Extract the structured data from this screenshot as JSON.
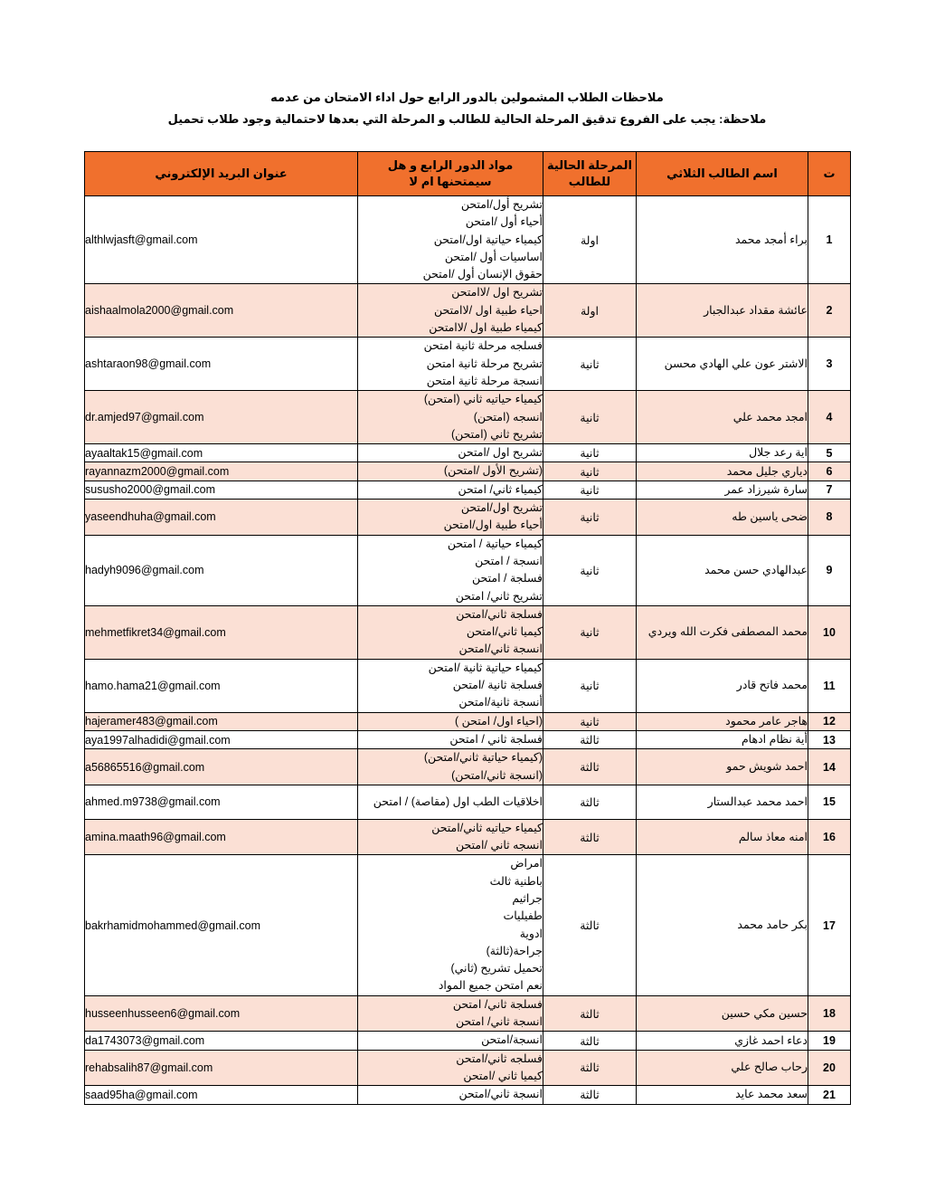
{
  "page": {
    "title_line1": "ملاحظات الطلاب المشمولين بالدور الرابع حول اداء الامتحان من عدمه",
    "title_line2": "ملاحظة:  يجب على الفروع تدقيق المرحلة الحالية للطالب و المرحلة التي بعدها لاحتمالية وجود طلاب تحميل"
  },
  "colors": {
    "header_bg": "#f0702d",
    "alt_row_bg": "#fbe0d5",
    "border": "#000000"
  },
  "table": {
    "headers": {
      "index": "ت",
      "name": "اسم الطالب الثلاثي",
      "stage": "المرحلة الحالية للطالب",
      "subjects": "مواد الدور الرابع و هل سيمتحنها ام لا",
      "email": "عنوان البريد الإلكتروني"
    },
    "rows": [
      {
        "index": "1",
        "name": "براء أمجد محمد",
        "stage": "اولة",
        "subjects": [
          "تشريح أول/امتحن",
          "أحياء أول /امتحن",
          "كيمياء حياتية اول/امتحن",
          "اساسيات  أول /امتحن",
          "حقوق الإنسان أول /امتحن"
        ],
        "email": "althlwjasft@gmail.com"
      },
      {
        "index": "2",
        "name": "عائشة مقداد عبدالجبار",
        "stage": "اولة",
        "subjects": [
          "تشريح اول /لاامتحن",
          "احياء طبية اول /لاامتحن",
          "كيمياء طبية اول /لاامتحن"
        ],
        "email": "aishaalmola2000@gmail.com"
      },
      {
        "index": "3",
        "name": "الاشتر عون علي الهادي محسن",
        "stage": "ثانية",
        "subjects": [
          "فسلجه مرحلة ثانية امتحن",
          "تشريح مرحلة ثانية امتحن",
          "انسجة مرحلة ثانية امتحن"
        ],
        "email": "ashtaraon98@gmail.com"
      },
      {
        "index": "4",
        "name": "امجد محمد علي",
        "stage": "ثانية",
        "subjects": [
          "كيمياء حياتيه ثاني (امتحن)",
          "انسجه (امتحن)",
          "تشريح ثاني (امتحن)"
        ],
        "email": "dr.amjed97@gmail.com"
      },
      {
        "index": "5",
        "name": "اية رعد جلال",
        "stage": "ثانية",
        "subjects": [
          "تشريح اول /امتحن"
        ],
        "email": "ayaaltak15@gmail.com"
      },
      {
        "index": "6",
        "name": "دياري جليل محمد",
        "stage": "ثانية",
        "subjects": [
          "(تشريح الأول /امتحن)"
        ],
        "email": "rayannazm2000@gmail.com"
      },
      {
        "index": "7",
        "name": "سارة شيرزاد عمر",
        "stage": "ثانية",
        "subjects": [
          "كيمياء ثاني/ امتحن"
        ],
        "email": "sususho2000@gmail.com"
      },
      {
        "index": "8",
        "name": "ضحى ياسين طه",
        "stage": "ثانية",
        "subjects": [
          "تشريح اول/امتحن",
          "أحياء طبية اول/امتحن"
        ],
        "email": "yaseendhuha@gmail.com"
      },
      {
        "index": "9",
        "name": "عبدالهادي حسن محمد",
        "stage": "ثانية",
        "subjects": [
          "كيمياء حياتية / امتحن",
          "انسجة / امتحن",
          "فسلجة / امتحن",
          "تشريح ثاني/ امتحن"
        ],
        "email": "hadyh9096@gmail.com"
      },
      {
        "index": "10",
        "name": "محمد المصطفى فكرت الله ويردي",
        "stage": "ثانية",
        "subjects": [
          "فسلجة ثاني/امتحن",
          "كيميا ثاني/امتحن",
          "انسجة ثاني/امتحن"
        ],
        "email": "mehmetfikret34@gmail.com"
      },
      {
        "index": "11",
        "name": "محمد فاتح قادر",
        "stage": "ثانية",
        "subjects": [
          "كيمياء حياتية ثانية /امتحن",
          "فسلجة ثانية /امتحن",
          "أنسجة ثانية/امتحن"
        ],
        "email": "hamo.hama21@gmail.com"
      },
      {
        "index": "12",
        "name": "هاجر عامر محمود",
        "stage": "ثانية",
        "subjects": [
          "(احياء اول/ امتحن )"
        ],
        "email": "hajeramer483@gmail.com"
      },
      {
        "index": "13",
        "name": "أية نظام ادهام",
        "stage": "ثالثة",
        "subjects": [
          "فسلجة ثاني / امتحن"
        ],
        "email": "aya1997alhadidi@gmail.com"
      },
      {
        "index": "14",
        "name": "احمد شويش حمو",
        "stage": "ثالثة",
        "subjects": [
          "(كيمياء حياتية ثاني/امتحن)",
          "(انسجة ثاني/امتحن)"
        ],
        "email": "a56865516@gmail.com"
      },
      {
        "index": "15",
        "name": "احمد محمد عبدالستار",
        "stage": "ثالثة",
        "subjects": [
          "اخلاقيات الطب اول (مقاصة) / امتحن"
        ],
        "email": "ahmed.m9738@gmail.com"
      },
      {
        "index": "16",
        "name": "امنه معاذ سالم",
        "stage": "ثالثة",
        "subjects": [
          "كيمياء حياتيه ثاني/امتحن",
          "انسجه ثاني /امتحن"
        ],
        "email": "amina.maath96@gmail.com"
      },
      {
        "index": "17",
        "name": "بكر حامد محمد",
        "stage": "ثالثة",
        "subjects": [
          "امراض",
          "باطنية ثالث",
          "جراثيم",
          "طفيليات",
          "ادوية",
          "جراحة(ثالثة)",
          "تحميل تشريح (ثاني)",
          "نعم امتحن جميع المواد"
        ],
        "email": "bakrhamidmohammed@gmail.com"
      },
      {
        "index": "18",
        "name": "حسين مكي حسين",
        "stage": "ثالثة",
        "subjects": [
          "فسلجة ثاني/ امتحن",
          "انسجة ثاني/ امتحن"
        ],
        "email": "husseenhusseen6@gmail.com"
      },
      {
        "index": "19",
        "name": "دعاء احمد غازي",
        "stage": "ثالثة",
        "subjects": [
          "انسجة/امتحن"
        ],
        "email": "da1743073@gmail.com"
      },
      {
        "index": "20",
        "name": "رحاب صالح علي",
        "stage": "ثالثة",
        "subjects": [
          "فسلجه ثاني/امتحن",
          "كيميا ثاني /امتحن"
        ],
        "email": "rehabsalih87@gmail.com"
      },
      {
        "index": "21",
        "name": "سعد محمد عايد",
        "stage": "ثالثة",
        "subjects": [
          "انسجة ثاني/امتحن"
        ],
        "email": "saad95ha@gmail.com"
      }
    ]
  }
}
